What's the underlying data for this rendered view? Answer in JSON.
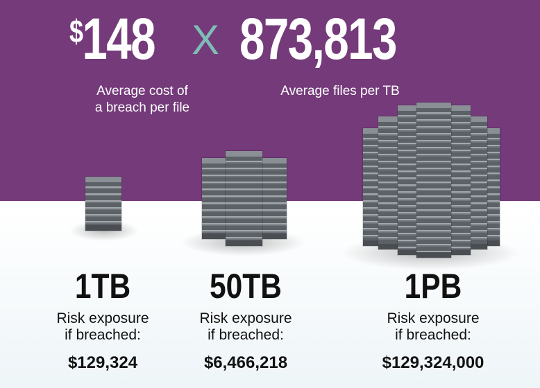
{
  "header": {
    "cost_symbol": "$",
    "cost_value": "148",
    "operator": "X",
    "files_value": "873,813",
    "cost_caption_line1": "Average cost of",
    "cost_caption_line2": "a breach per file",
    "files_caption": "Average files per TB"
  },
  "colors": {
    "band": "#743a7a",
    "operator": "#7fbcb5",
    "server": "#5c6167"
  },
  "tiers": [
    {
      "size": "1TB",
      "risk_line1": "Risk exposure",
      "risk_line2": "if breached:",
      "value": "$129,324"
    },
    {
      "size": "50TB",
      "risk_line1": "Risk exposure",
      "risk_line2": "if breached:",
      "value": "$6,466,218"
    },
    {
      "size": "1PB",
      "risk_line1": "Risk exposure",
      "risk_line2": "if breached:",
      "value": "$129,324,000"
    }
  ]
}
